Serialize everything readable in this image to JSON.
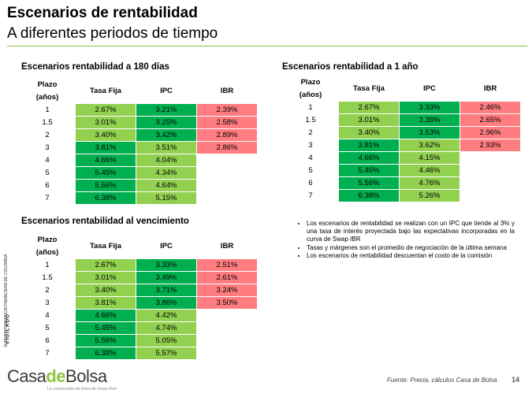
{
  "header": {
    "title": "Escenarios de rentabilidad",
    "subtitle": "A diferentes periodos de tiempo"
  },
  "colors": {
    "accent": "#8dc63f",
    "light_green": "#92d050",
    "green": "#00b050",
    "red": "#ff7c80"
  },
  "columns": {
    "plazo_line1": "Plazo",
    "plazo_line2": "(años)",
    "tasa_fija": "Tasa Fija",
    "ipc": "IPC",
    "ibr": "IBR"
  },
  "tables": [
    {
      "title": "Escenarios rentabilidad a 180 días",
      "rows": [
        {
          "plazo": "1",
          "tasa_fija": "2.67%",
          "ipc": "3.21%",
          "ibr": "2.39%",
          "tf_color": "light",
          "ipc_color": "green"
        },
        {
          "plazo": "1.5",
          "tasa_fija": "3.01%",
          "ipc": "3.25%",
          "ibr": "2.58%",
          "tf_color": "light",
          "ipc_color": "green"
        },
        {
          "plazo": "2",
          "tasa_fija": "3.40%",
          "ipc": "3.42%",
          "ibr": "2.89%",
          "tf_color": "light",
          "ipc_color": "green"
        },
        {
          "plazo": "3",
          "tasa_fija": "3.81%",
          "ipc": "3.51%",
          "ibr": "2.86%",
          "tf_color": "green",
          "ipc_color": "light"
        },
        {
          "plazo": "4",
          "tasa_fija": "4.66%",
          "ipc": "4.04%",
          "ibr": "",
          "tf_color": "green",
          "ipc_color": "light"
        },
        {
          "plazo": "5",
          "tasa_fija": "5.45%",
          "ipc": "4.34%",
          "ibr": "",
          "tf_color": "green",
          "ipc_color": "light"
        },
        {
          "plazo": "6",
          "tasa_fija": "5.56%",
          "ipc": "4.64%",
          "ibr": "",
          "tf_color": "green",
          "ipc_color": "light"
        },
        {
          "plazo": "7",
          "tasa_fija": "6.38%",
          "ipc": "5.15%",
          "ibr": "",
          "tf_color": "green",
          "ipc_color": "light"
        }
      ]
    },
    {
      "title": "Escenarios rentabilidad a 1 año",
      "rows": [
        {
          "plazo": "1",
          "tasa_fija": "2.67%",
          "ipc": "3.33%",
          "ibr": "2.46%",
          "tf_color": "light",
          "ipc_color": "green"
        },
        {
          "plazo": "1.5",
          "tasa_fija": "3.01%",
          "ipc": "3.36%",
          "ibr": "2.65%",
          "tf_color": "light",
          "ipc_color": "green"
        },
        {
          "plazo": "2",
          "tasa_fija": "3.40%",
          "ipc": "3.53%",
          "ibr": "2.96%",
          "tf_color": "light",
          "ipc_color": "green"
        },
        {
          "plazo": "3",
          "tasa_fija": "3.81%",
          "ipc": "3.62%",
          "ibr": "2.93%",
          "tf_color": "green",
          "ipc_color": "light"
        },
        {
          "plazo": "4",
          "tasa_fija": "4.66%",
          "ipc": "4.15%",
          "ibr": "",
          "tf_color": "green",
          "ipc_color": "light"
        },
        {
          "plazo": "5",
          "tasa_fija": "5.45%",
          "ipc": "4.46%",
          "ibr": "",
          "tf_color": "green",
          "ipc_color": "light"
        },
        {
          "plazo": "6",
          "tasa_fija": "5.56%",
          "ipc": "4.76%",
          "ibr": "",
          "tf_color": "green",
          "ipc_color": "light"
        },
        {
          "plazo": "7",
          "tasa_fija": "6.38%",
          "ipc": "5.26%",
          "ibr": "",
          "tf_color": "green",
          "ipc_color": "light"
        }
      ]
    },
    {
      "title": "Escenarios rentabilidad al vencimiento",
      "rows": [
        {
          "plazo": "1",
          "tasa_fija": "2.67%",
          "ipc": "3.33%",
          "ibr": "2.51%",
          "tf_color": "light",
          "ipc_color": "green"
        },
        {
          "plazo": "1.5",
          "tasa_fija": "3.01%",
          "ipc": "3.49%",
          "ibr": "2.61%",
          "tf_color": "light",
          "ipc_color": "green"
        },
        {
          "plazo": "2",
          "tasa_fija": "3.40%",
          "ipc": "3.71%",
          "ibr": "3.24%",
          "tf_color": "light",
          "ipc_color": "green"
        },
        {
          "plazo": "3",
          "tasa_fija": "3.81%",
          "ipc": "3.86%",
          "ibr": "3.50%",
          "tf_color": "light",
          "ipc_color": "green"
        },
        {
          "plazo": "4",
          "tasa_fija": "4.66%",
          "ipc": "4.42%",
          "ibr": "",
          "tf_color": "green",
          "ipc_color": "light"
        },
        {
          "plazo": "5",
          "tasa_fija": "5.45%",
          "ipc": "4.74%",
          "ibr": "",
          "tf_color": "green",
          "ipc_color": "light"
        },
        {
          "plazo": "6",
          "tasa_fija": "5.56%",
          "ipc": "5.05%",
          "ibr": "",
          "tf_color": "green",
          "ipc_color": "light"
        },
        {
          "plazo": "7",
          "tasa_fija": "6.38%",
          "ipc": "5.57%",
          "ibr": "",
          "tf_color": "green",
          "ipc_color": "light"
        }
      ]
    }
  ],
  "notes": [
    "Los escenarios de rentabilidad se realizan con un IPC que tiende al 3% y una tasa de interés proyectada bajo las expectativas incorporadas en la curva de Swap IBR",
    "Tasas y márgenes son el promedio de negociación de la última semana",
    "Los escenarios de rentabilidad descuentan el costo de la comisión"
  ],
  "side_label": {
    "small": "SUPERINTENDENCIA FINANCIERA DE COLOMBIA",
    "big": "VIGILADO"
  },
  "footer": {
    "logo_casa": "Casa",
    "logo_de": "de",
    "logo_bolsa": "Bolsa",
    "tagline": "La comisionista de bolsa de Grupo Aval",
    "source": "Fuente: Precia, cálculos Casa de Bolsa",
    "page": "14"
  }
}
